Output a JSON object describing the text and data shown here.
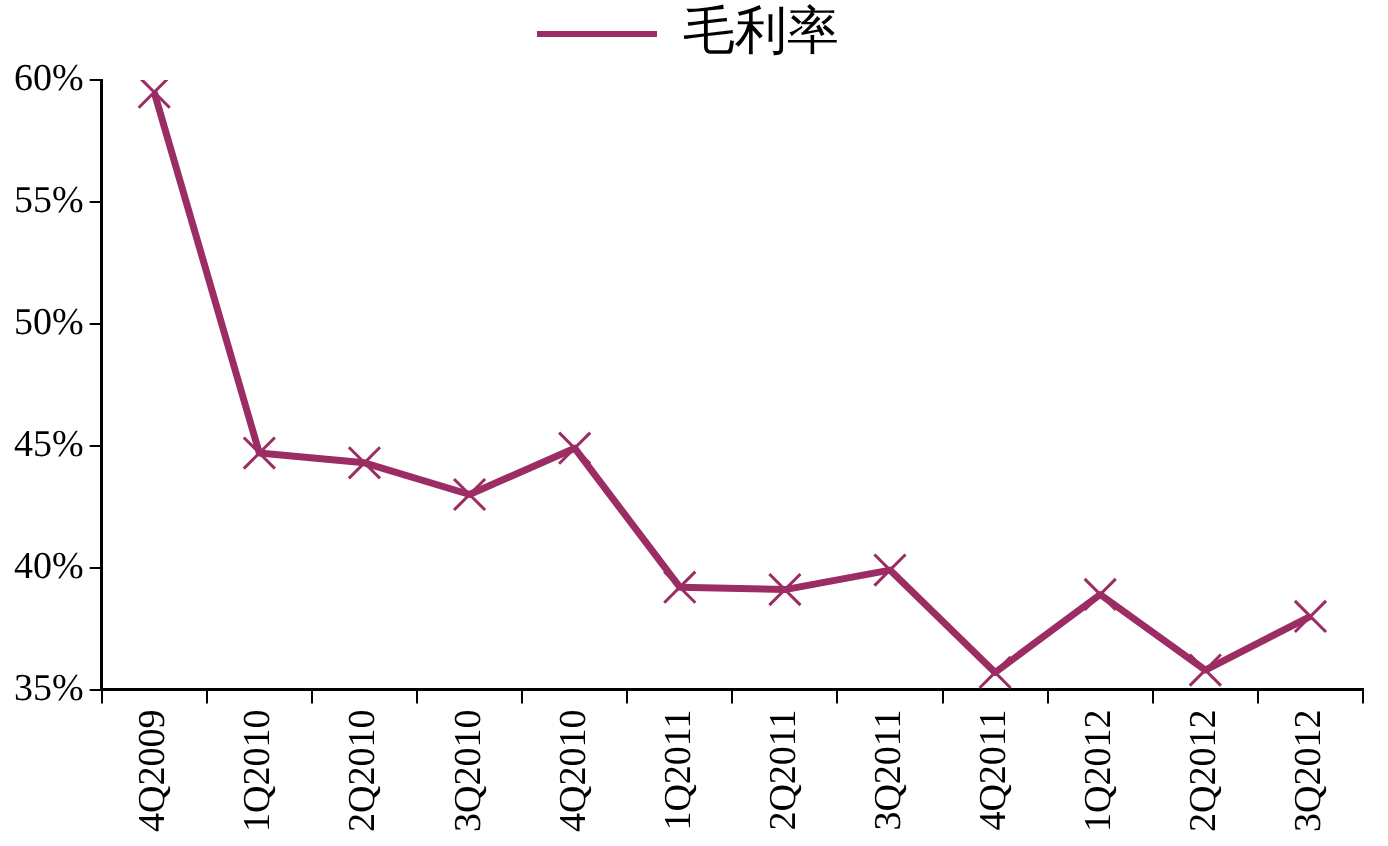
{
  "chart_data": {
    "type": "line",
    "categories": [
      "4Q2009",
      "1Q2010",
      "2Q2010",
      "3Q2010",
      "4Q2010",
      "1Q2011",
      "2Q2011",
      "3Q2011",
      "4Q2011",
      "1Q2012",
      "2Q2012",
      "3Q2012"
    ],
    "series": [
      {
        "name": "毛利率",
        "color": "#9b2d64",
        "values": [
          59.5,
          44.7,
          44.3,
          43.0,
          44.9,
          39.2,
          39.1,
          39.9,
          35.7,
          38.9,
          35.8,
          38.0
        ]
      }
    ],
    "ylim": [
      35,
      60
    ],
    "yticks": [
      {
        "value": 35,
        "label": "35%"
      },
      {
        "value": 40,
        "label": "40%"
      },
      {
        "value": 45,
        "label": "45%"
      },
      {
        "value": 50,
        "label": "50%"
      },
      {
        "value": 55,
        "label": "55%"
      },
      {
        "value": 60,
        "label": "60%"
      }
    ],
    "grid": false,
    "legend": "top",
    "marker": "cross",
    "line_style": "solid"
  }
}
